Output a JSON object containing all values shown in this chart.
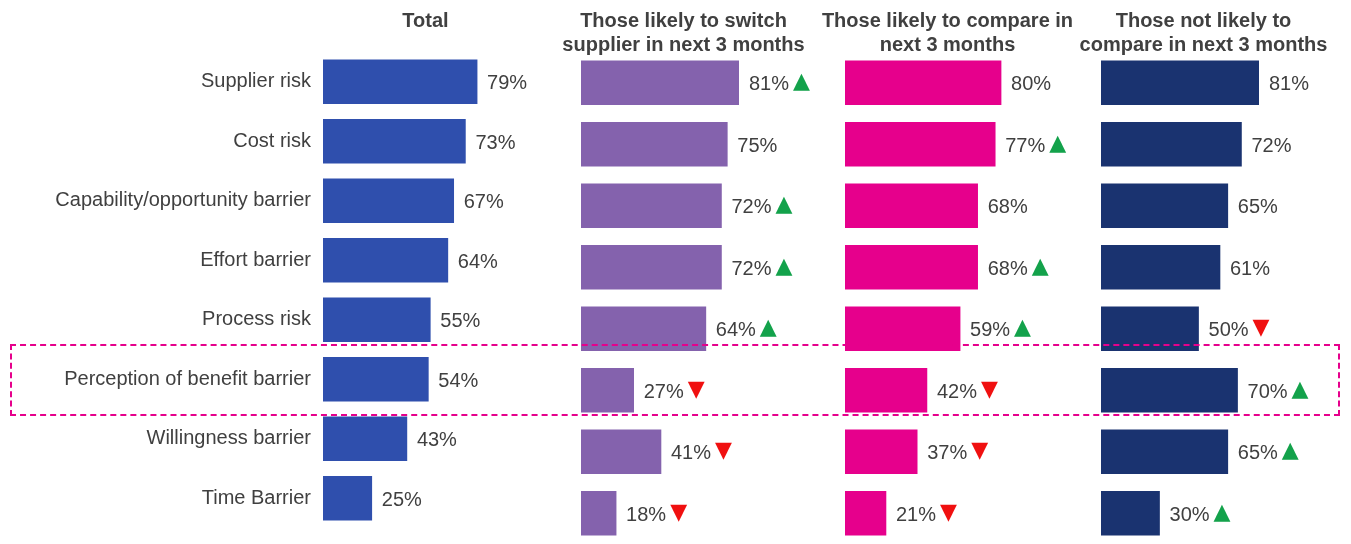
{
  "chart_data": [
    {
      "type": "bar",
      "orientation": "horizontal",
      "title": "Total",
      "tick_labels": "y",
      "categories": [
        "Supplier risk",
        "Cost risk",
        "Capability/opportunity barrier",
        "Effort barrier",
        "Process risk",
        "Perception of benefit barrier",
        "Willingness barrier",
        "Time Barrier"
      ],
      "values": [
        79,
        73,
        67,
        64,
        55,
        54,
        43,
        25
      ],
      "color": "#2f4fad",
      "value_labels": [
        "79%",
        "73%",
        "67%",
        "64%",
        "55%",
        "54%",
        "43%",
        "25%"
      ]
    },
    {
      "type": "bar",
      "orientation": "horizontal",
      "title": "Those likely to switch supplier in next 3 months",
      "tick_labels": false,
      "categories": [
        "Supplier risk",
        "Cost risk",
        "Capability/opportunity barrier",
        "Effort barrier",
        "Process risk",
        "Perception of benefit barrier",
        "Willingness barrier",
        "Time Barrier"
      ],
      "values": [
        81,
        75,
        72,
        72,
        64,
        27,
        41,
        18
      ],
      "color": "#8462ad",
      "value_labels": [
        "81%",
        "75%",
        "72%",
        "72%",
        "64%",
        "27%",
        "41%",
        "18%"
      ],
      "annotations": [
        {
          "text": "▲",
          "x": 81,
          "y": "Supplier risk"
        },
        {
          "text": "▲",
          "x": 72,
          "y": "Capability/opportunity barrier"
        },
        {
          "text": "▲",
          "x": 72,
          "y": "Effort barrier"
        },
        {
          "text": "▲",
          "x": 64,
          "y": "Process risk"
        },
        {
          "text": "▼",
          "x": 27,
          "y": "Perception of benefit barrier"
        },
        {
          "text": "▼",
          "x": 41,
          "y": "Willingness barrier"
        },
        {
          "text": "▼",
          "x": 18,
          "y": "Time Barrier"
        }
      ]
    },
    {
      "type": "bar",
      "orientation": "horizontal",
      "title": "Those likely to compare in next 3 months",
      "tick_labels": false,
      "categories": [
        "Supplier risk",
        "Cost risk",
        "Capability/opportunity barrier",
        "Effort barrier",
        "Process risk",
        "Perception of benefit barrier",
        "Willingness barrier",
        "Time Barrier"
      ],
      "values": [
        80,
        77,
        68,
        68,
        59,
        42,
        37,
        21
      ],
      "color": "#e6008c",
      "value_labels": [
        "80%",
        "77%",
        "68%",
        "68%",
        "59%",
        "42%",
        "37%",
        "21%"
      ],
      "annotations": [
        {
          "text": "▲",
          "x": 77,
          "y": "Cost risk"
        },
        {
          "text": "▲",
          "x": 68,
          "y": "Effort barrier"
        },
        {
          "text": "▲",
          "x": 59,
          "y": "Process risk"
        },
        {
          "text": "▼",
          "x": 42,
          "y": "Perception of benefit barrier"
        },
        {
          "text": "▼",
          "x": 37,
          "y": "Willingness barrier"
        },
        {
          "text": "▼",
          "x": 21,
          "y": "Time Barrier"
        }
      ]
    },
    {
      "type": "bar",
      "orientation": "horizontal",
      "title": "Those not likely to compare in next 3 months",
      "tick_labels": false,
      "categories": [
        "Supplier risk",
        "Cost risk",
        "Capability/opportunity barrier",
        "Effort barrier",
        "Process risk",
        "Perception of benefit barrier",
        "Willingness barrier",
        "Time Barrier"
      ],
      "values": [
        81,
        72,
        65,
        61,
        50,
        70,
        65,
        30
      ],
      "color": "#1a3370",
      "value_labels": [
        "81%",
        "72%",
        "65%",
        "61%",
        "50%",
        "70%",
        "65%",
        "30%"
      ],
      "annotations": [
        {
          "text": "▼",
          "x": 50,
          "y": "Process risk"
        },
        {
          "text": "▲",
          "x": 70,
          "y": "Perception of benefit barrier"
        },
        {
          "text": "▲",
          "x": 65,
          "y": "Willingness barrier"
        },
        {
          "text": "▲",
          "x": 30,
          "y": "Time Barrier"
        }
      ]
    }
  ]
}
